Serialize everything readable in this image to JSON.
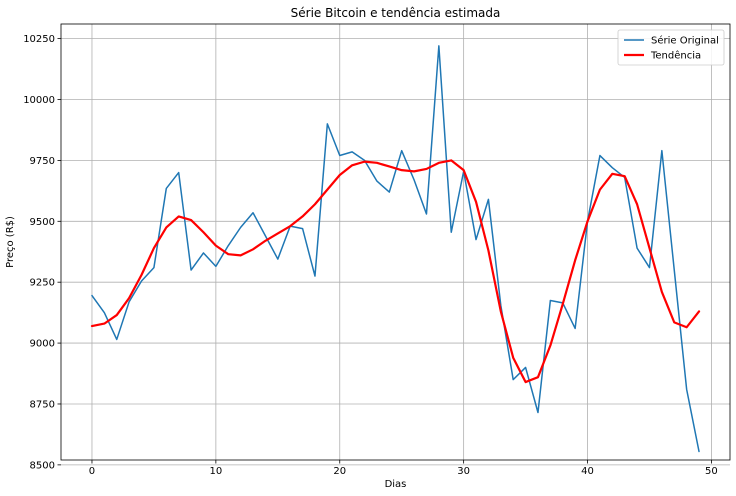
{
  "chart_data": {
    "type": "line",
    "title": "Série Bitcoin e tendência estimada",
    "xlabel": "Dias",
    "ylabel": "Preço (R$)",
    "xlim": [
      -2.5,
      51.5
    ],
    "ylim": [
      8520,
      10310
    ],
    "x_ticks": [
      0,
      10,
      20,
      30,
      40,
      50
    ],
    "y_ticks": [
      8500,
      8750,
      9000,
      9250,
      9500,
      9750,
      10000,
      10250
    ],
    "grid": true,
    "legend_position": "top-right",
    "x": [
      0,
      1,
      2,
      3,
      4,
      5,
      6,
      7,
      8,
      9,
      10,
      11,
      12,
      13,
      14,
      15,
      16,
      17,
      18,
      19,
      20,
      21,
      22,
      23,
      24,
      25,
      26,
      27,
      28,
      29,
      30,
      31,
      32,
      33,
      34,
      35,
      36,
      37,
      38,
      39,
      40,
      41,
      42,
      43,
      44,
      45,
      46,
      47,
      48,
      49
    ],
    "series": [
      {
        "name": "Série Original",
        "color": "#1f77b4",
        "values": [
          9195,
          9125,
          9015,
          9170,
          9255,
          9310,
          9635,
          9700,
          9300,
          9370,
          9315,
          9400,
          9475,
          9535,
          9440,
          9345,
          9480,
          9470,
          9275,
          9900,
          9770,
          9785,
          9750,
          9665,
          9620,
          9790,
          9670,
          9530,
          10220,
          9455,
          9705,
          9425,
          9590,
          9155,
          8850,
          8900,
          8715,
          9175,
          9165,
          9060,
          9500,
          9770,
          9720,
          9680,
          9390,
          9310,
          9790,
          9300,
          8810,
          8555
        ]
      },
      {
        "name": "Tendência",
        "color": "#ff0000",
        "values": [
          9070,
          9080,
          9115,
          9185,
          9280,
          9390,
          9475,
          9520,
          9505,
          9455,
          9400,
          9365,
          9360,
          9385,
          9420,
          9450,
          9480,
          9520,
          9570,
          9630,
          9690,
          9730,
          9745,
          9740,
          9725,
          9710,
          9705,
          9715,
          9740,
          9750,
          9710,
          9580,
          9380,
          9130,
          8940,
          8840,
          8860,
          8990,
          9160,
          9340,
          9500,
          9630,
          9695,
          9685,
          9570,
          9390,
          9210,
          9085,
          9065,
          9130
        ]
      }
    ]
  }
}
